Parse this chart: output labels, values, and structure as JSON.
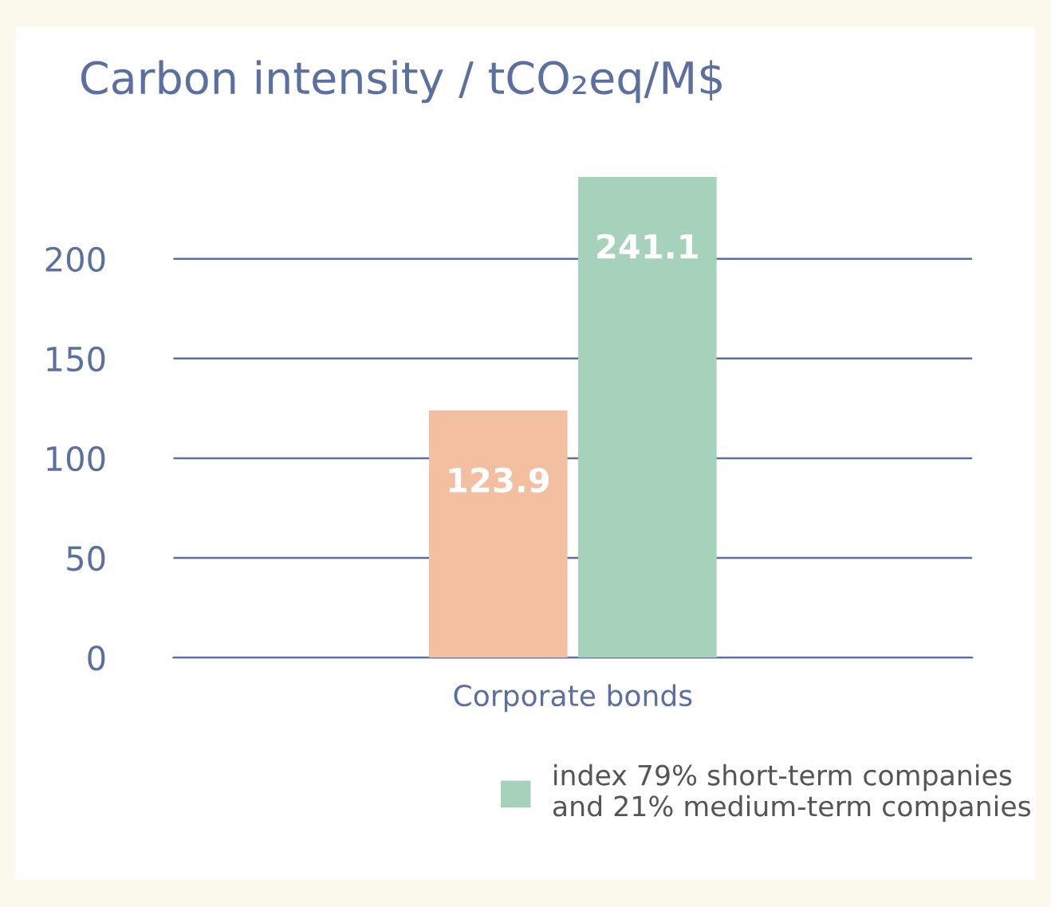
{
  "chart_data": {
    "type": "bar",
    "title": "Carbon intensity / tCO₂eq/M$",
    "categories": [
      "Corporate bonds"
    ],
    "series": [
      {
        "color": "#f3bfa1",
        "values": [
          123.9
        ]
      },
      {
        "name": "index 79% short-term companies\nand 21% medium-term companies",
        "color": "#a6d1bb",
        "values": [
          241.1
        ]
      }
    ],
    "ylim": [
      0,
      241.1
    ],
    "yticks": [
      0,
      50,
      100,
      150,
      200
    ],
    "grid": "y",
    "legend": "bottom",
    "data_labels": true
  }
}
